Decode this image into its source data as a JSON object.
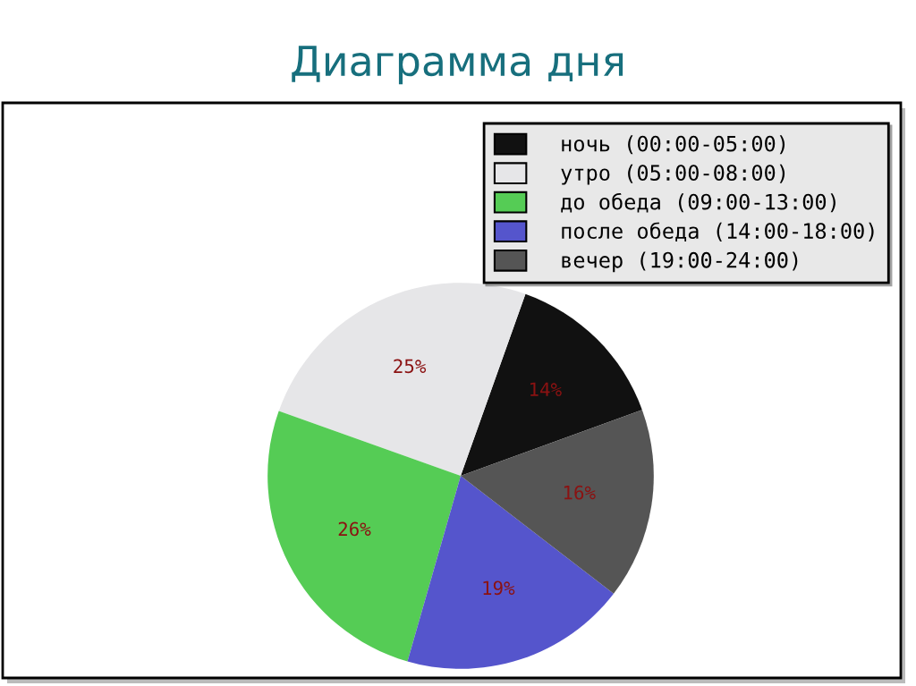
{
  "chart_data": {
    "type": "pie",
    "title": "Диаграмма дня",
    "categories": [
      "ночь (00:00-05:00)",
      "утро (05:00-08:00)",
      "до обеда (09:00-13:00)",
      "после обеда (14:00-18:00)",
      "вечер (19:00-24:00)"
    ],
    "values": [
      14,
      25,
      26,
      19,
      16
    ],
    "colors": [
      "#111111",
      "#e6e6e8",
      "#55cc55",
      "#5555cc",
      "#555555"
    ],
    "value_labels": [
      "14%",
      "25%",
      "26%",
      "19%",
      "16%"
    ],
    "legend": "top right"
  }
}
